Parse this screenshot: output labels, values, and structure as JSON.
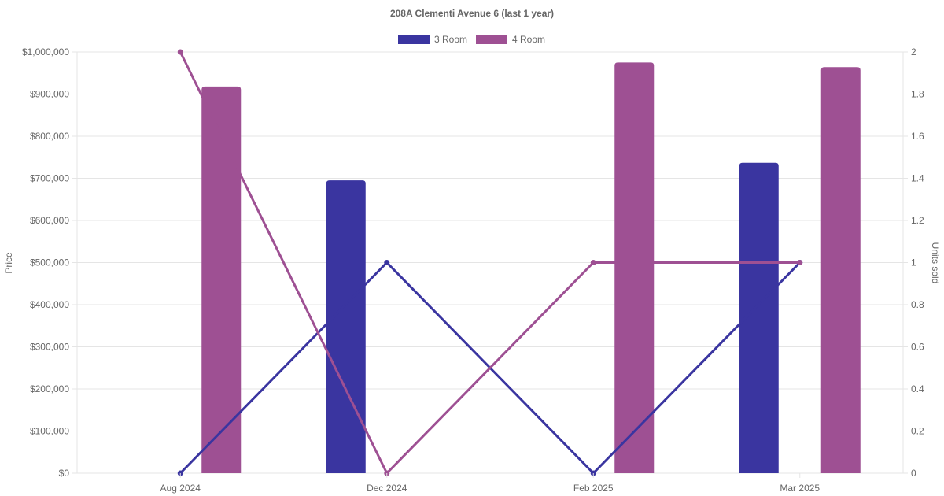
{
  "chart_data": {
    "type": "bar",
    "title": "208A Clementi Avenue 6 (last 1 year)",
    "categories": [
      "Aug 2024",
      "Dec 2024",
      "Feb 2025",
      "Mar 2025"
    ],
    "y_left": {
      "label": "Price",
      "range": [
        0,
        1000000
      ],
      "ticks": [
        "$0",
        "$100,000",
        "$200,000",
        "$300,000",
        "$400,000",
        "$500,000",
        "$600,000",
        "$700,000",
        "$800,000",
        "$900,000",
        "$1,000,000"
      ]
    },
    "y_right": {
      "label": "Units sold",
      "range": [
        0,
        2
      ],
      "ticks": [
        "0",
        "0.2",
        "0.4",
        "0.6",
        "0.8",
        "1",
        "1.2",
        "1.4",
        "1.6",
        "1.8",
        "2"
      ]
    },
    "grid": true,
    "legend_position": "top",
    "series": [
      {
        "name": "3 Room",
        "color": "#3a35a0",
        "price": [
          null,
          695000,
          null,
          737000
        ],
        "units_sold": [
          0,
          1,
          0,
          1
        ]
      },
      {
        "name": "4 Room",
        "color": "#9e5093",
        "price": [
          918000,
          null,
          975000,
          964000
        ],
        "units_sold": [
          2,
          0,
          1,
          1
        ]
      }
    ]
  }
}
